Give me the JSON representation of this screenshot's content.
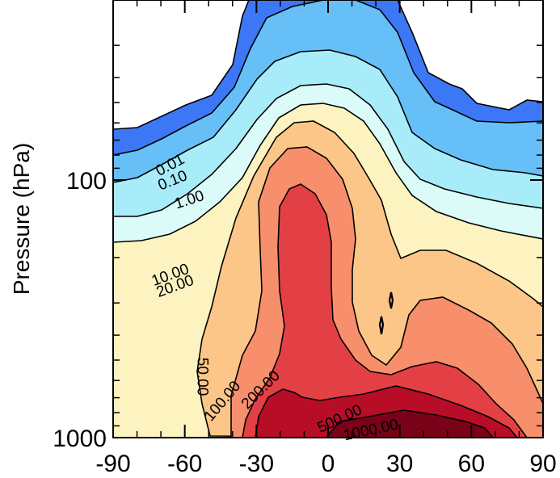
{
  "chart_data": {
    "type": "contour",
    "title": "",
    "xlabel": "",
    "ylabel": "Pressure (hPa)",
    "x_ticks": [
      "-90",
      "-60",
      "-30",
      "0",
      "30",
      "60",
      "90"
    ],
    "xlim": [
      -90,
      90
    ],
    "y_ticks": [
      "100",
      "1000"
    ],
    "y_scale": "log",
    "ylim": [
      1000,
      20
    ],
    "grid": false,
    "contour_levels": [
      0.01,
      0.1,
      1,
      10,
      20,
      50,
      100,
      200,
      500,
      1000
    ],
    "contour_labels": [
      {
        "text": "0.01",
        "x": -66,
        "y": 88,
        "angle": -28
      },
      {
        "text": "0.10",
        "x": -65,
        "y": 101,
        "angle": -22
      },
      {
        "text": "1.00",
        "x": -58,
        "y": 120,
        "angle": -18
      },
      {
        "text": "10.00",
        "x": -66,
        "y": 235,
        "angle": -20
      },
      {
        "text": "20.00",
        "x": -64,
        "y": 260,
        "angle": -20
      },
      {
        "text": "50.00",
        "x": -53,
        "y": 580,
        "angle": 90
      },
      {
        "text": "100.00",
        "x": -44,
        "y": 725,
        "angle": -50
      },
      {
        "text": "200.00",
        "x": -28,
        "y": 655,
        "angle": -45
      },
      {
        "text": "500.00",
        "x": 5,
        "y": 850,
        "angle": -25
      },
      {
        "text": "1000.00",
        "x": 18,
        "y": 940,
        "angle": -12
      }
    ],
    "fill_colors": {
      "lt_0.01": "#ffffff",
      "0.01_0.1": "#3c78f5",
      "0.1_1": "#66bff7",
      "1_10": "#a8ecf9",
      "10_20": "#dbfbf8",
      "20_50": "#fdf3c0",
      "50_100": "#fcc688",
      "100_200": "#f78e6c",
      "200_500": "#e34045",
      "500_1000": "#b70d27",
      "gt_1000": "#7a0218"
    }
  }
}
